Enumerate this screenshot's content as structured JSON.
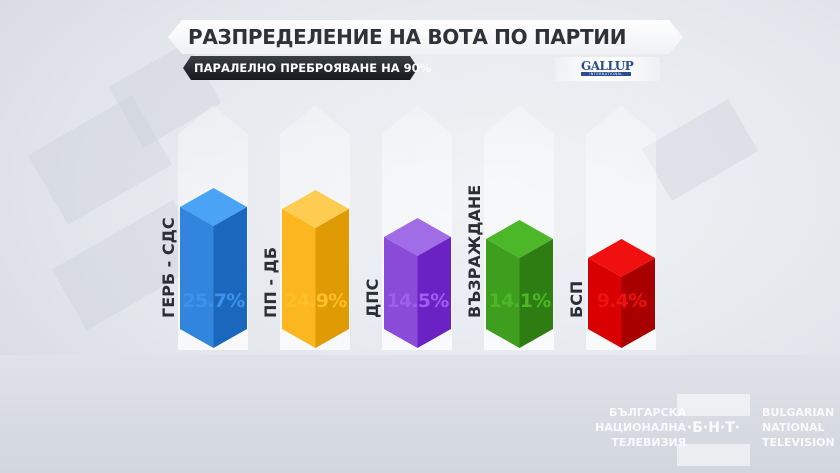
{
  "header": {
    "title": "РАЗПРЕДЕЛЕНИЕ НА ВОТА ПО ПАРТИИ",
    "subtitle": "ПАРАЛЕЛНО ПРЕБРОЯВАНЕ НА 90%",
    "source_logo": {
      "name": "GALLUP",
      "sub": "INTERNATIONAL"
    }
  },
  "parties": [
    {
      "name": "ГЕРБ - СДС",
      "value": "25.7%",
      "color": "#3b8fe6",
      "top": "#4aa3f5",
      "left": "#3285dc",
      "right": "#1b67bd",
      "text_color": "#3d93ec"
    },
    {
      "name": "ПП - ДБ",
      "value": "24.9%",
      "color": "#f7b51c",
      "top": "#ffcc52",
      "left": "#fbb620",
      "right": "#e09a04",
      "text_color": "#fbbf2a"
    },
    {
      "name": "ДПС",
      "value": "14.5%",
      "color": "#8a48dc",
      "top": "#a06de7",
      "left": "#8a4bd8",
      "right": "#6a22c4",
      "text_color": "#a05ef0"
    },
    {
      "name": "ВЪЗРАЖДАНЕ",
      "value": "14.1%",
      "color": "#3f9c1d",
      "top": "#4cb829",
      "left": "#3e9e1e",
      "right": "#2d7d12",
      "text_color": "#4cb829"
    },
    {
      "name": "БСП",
      "value": "9.4%",
      "color": "#dd0000",
      "top": "#f01010",
      "left": "#d80000",
      "right": "#a80000",
      "text_color": "#ee1111"
    }
  ],
  "footer": {
    "bg_lines": [
      "БЪЛГАРСКА",
      "НАЦИОНАЛНА",
      "ТЕЛЕВИЗИЯ"
    ],
    "en_lines": [
      "BULGARIAN",
      "NATIONAL",
      "TELEVISION"
    ],
    "logo": "·Б·Н·Т·"
  },
  "chart_data": {
    "type": "bar",
    "title": "РАЗПРЕДЕЛЕНИЕ НА ВОТА ПО ПАРТИИ",
    "subtitle": "ПАРАЛЕЛНО ПРЕБРОЯВАНЕ НА 90%",
    "source": "Gallup International",
    "categories": [
      "ГЕРБ - СДС",
      "ПП - ДБ",
      "ДПС",
      "ВЪЗРАЖДАНЕ",
      "БСП"
    ],
    "values": [
      25.7,
      24.9,
      14.5,
      14.1,
      9.4
    ],
    "unit": "%",
    "colors": [
      "#3b8fe6",
      "#f7b51c",
      "#8a48dc",
      "#3f9c1d",
      "#dd0000"
    ],
    "xlabel": "",
    "ylabel": "",
    "grid": false,
    "legend": false
  }
}
